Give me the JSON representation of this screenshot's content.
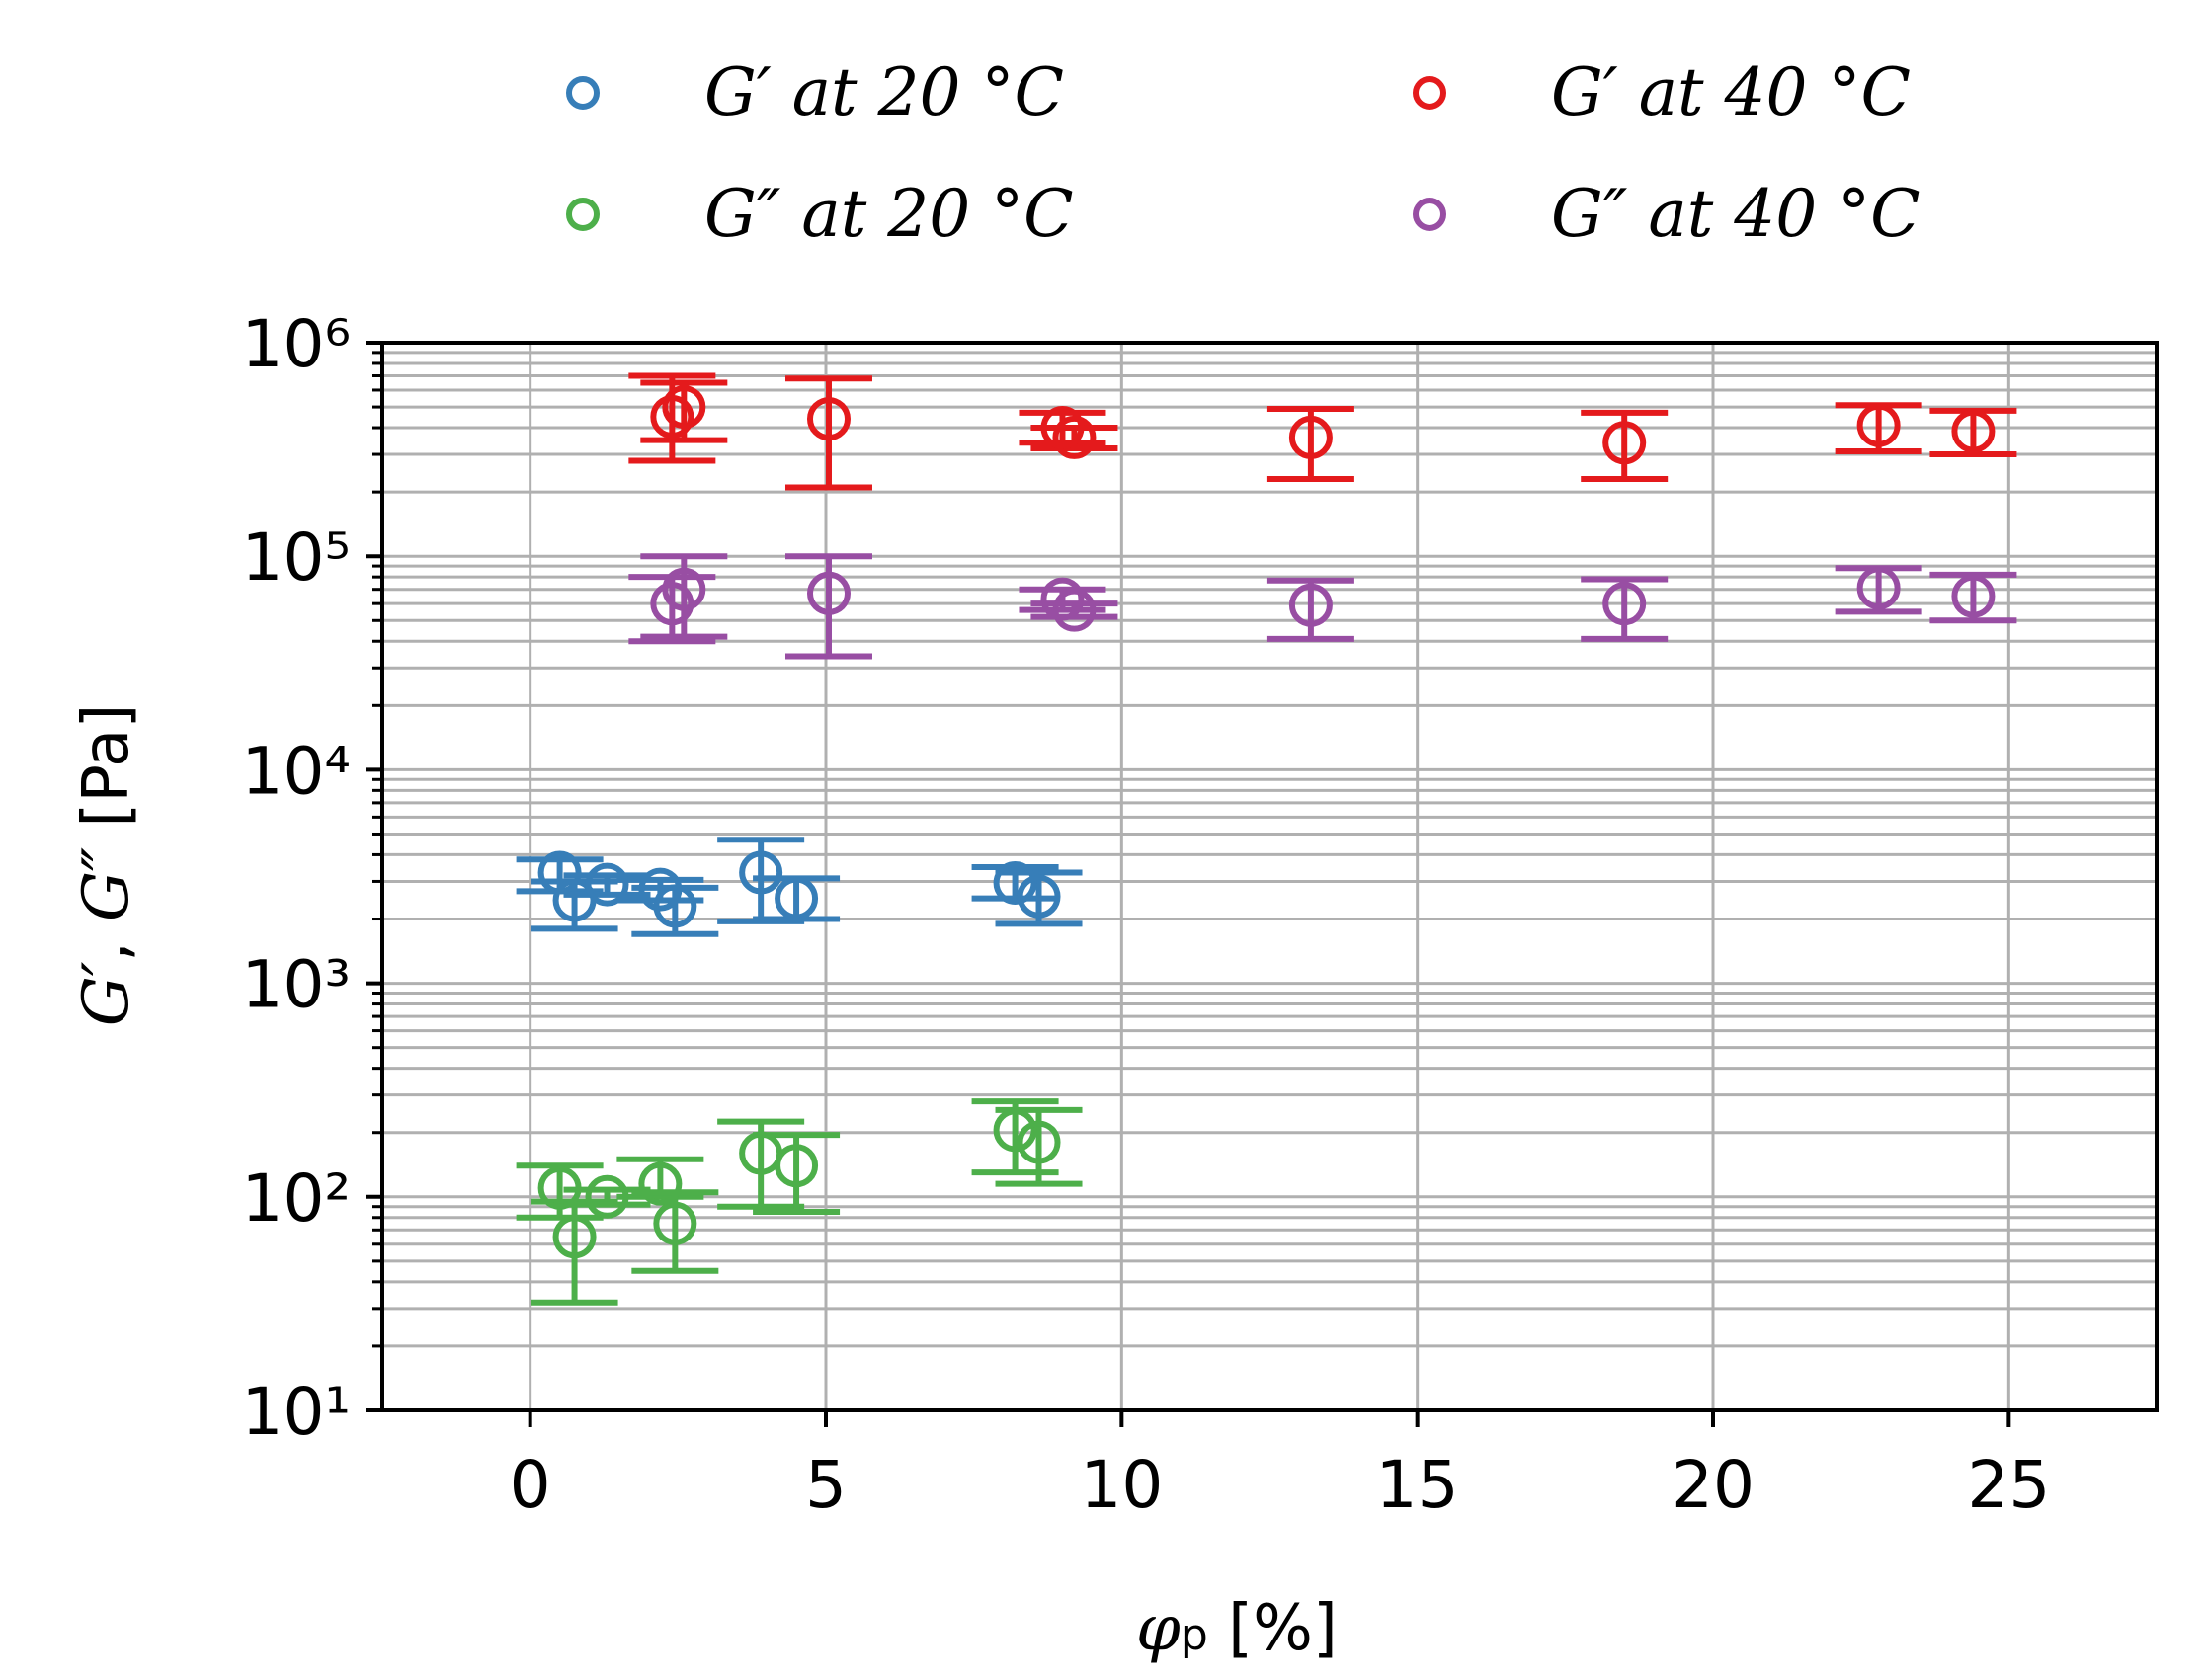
{
  "chart_data": {
    "type": "scatter",
    "title": "",
    "xlabel": "φp [%]",
    "ylabel": "G′, G″ [Pa]",
    "xlim": [
      -2.5,
      27.5
    ],
    "ylim": [
      10,
      1000000
    ],
    "y_scale": "log",
    "grid": true,
    "x_ticks": [
      "0",
      "5",
      "10",
      "15",
      "20",
      "25"
    ],
    "y_ticks": [
      "10¹",
      "10²",
      "10³",
      "10⁴",
      "10⁵",
      "10⁶"
    ],
    "legend_position": "top",
    "series": [
      {
        "name": "G′ at 20 °C",
        "color": "#377eb8",
        "points": [
          {
            "x": 0.5,
            "y": 3300,
            "low": 2700,
            "high": 3800
          },
          {
            "x": 0.75,
            "y": 2450,
            "low": 1800,
            "high": 3000
          },
          {
            "x": 1.3,
            "y": 2900,
            "low": 2600,
            "high": 3200
          },
          {
            "x": 2.2,
            "y": 2750,
            "low": 2450,
            "high": 3050
          },
          {
            "x": 2.45,
            "y": 2300,
            "low": 1700,
            "high": 2800
          },
          {
            "x": 3.9,
            "y": 3300,
            "low": 1950,
            "high": 4700
          },
          {
            "x": 4.5,
            "y": 2500,
            "low": 2000,
            "high": 3100
          },
          {
            "x": 8.2,
            "y": 2950,
            "low": 2500,
            "high": 3500
          },
          {
            "x": 8.6,
            "y": 2550,
            "low": 1900,
            "high": 3300
          }
        ]
      },
      {
        "name": "G″ at 20 °C",
        "color": "#4daf4a",
        "points": [
          {
            "x": 0.5,
            "y": 110,
            "low": 80,
            "high": 140
          },
          {
            "x": 0.75,
            "y": 65,
            "low": 32,
            "high": 95
          },
          {
            "x": 1.3,
            "y": 100,
            "low": 92,
            "high": 108
          },
          {
            "x": 2.2,
            "y": 115,
            "low": 100,
            "high": 150
          },
          {
            "x": 2.45,
            "y": 75,
            "low": 45,
            "high": 105
          },
          {
            "x": 3.9,
            "y": 160,
            "low": 90,
            "high": 225
          },
          {
            "x": 4.5,
            "y": 140,
            "low": 85,
            "high": 195
          },
          {
            "x": 8.2,
            "y": 205,
            "low": 130,
            "high": 280
          },
          {
            "x": 8.6,
            "y": 180,
            "low": 115,
            "high": 255
          }
        ]
      },
      {
        "name": "G′ at 40 °C",
        "color": "#e41a1c",
        "points": [
          {
            "x": 2.4,
            "y": 450000,
            "low": 280000,
            "high": 700000
          },
          {
            "x": 2.6,
            "y": 500000,
            "low": 350000,
            "high": 650000
          },
          {
            "x": 5.05,
            "y": 440000,
            "low": 210000,
            "high": 680000
          },
          {
            "x": 9.0,
            "y": 400000,
            "low": 340000,
            "high": 470000
          },
          {
            "x": 9.2,
            "y": 360000,
            "low": 320000,
            "high": 400000
          },
          {
            "x": 13.2,
            "y": 360000,
            "low": 230000,
            "high": 490000
          },
          {
            "x": 18.5,
            "y": 340000,
            "low": 230000,
            "high": 470000
          },
          {
            "x": 22.8,
            "y": 410000,
            "low": 310000,
            "high": 510000
          },
          {
            "x": 24.4,
            "y": 385000,
            "low": 300000,
            "high": 480000
          }
        ]
      },
      {
        "name": "G″ at 40 °C",
        "color": "#984ea3",
        "points": [
          {
            "x": 2.4,
            "y": 60000,
            "low": 40000,
            "high": 80000
          },
          {
            "x": 2.6,
            "y": 70000,
            "low": 42000,
            "high": 100000
          },
          {
            "x": 5.05,
            "y": 67000,
            "low": 34000,
            "high": 100000
          },
          {
            "x": 9.0,
            "y": 63000,
            "low": 56000,
            "high": 70000
          },
          {
            "x": 9.2,
            "y": 56000,
            "low": 52000,
            "high": 60000
          },
          {
            "x": 13.2,
            "y": 59000,
            "low": 41000,
            "high": 77000
          },
          {
            "x": 18.5,
            "y": 60000,
            "low": 41000,
            "high": 78000
          },
          {
            "x": 22.8,
            "y": 71000,
            "low": 55000,
            "high": 88000
          },
          {
            "x": 24.4,
            "y": 65000,
            "low": 50000,
            "high": 82000
          }
        ]
      }
    ]
  }
}
